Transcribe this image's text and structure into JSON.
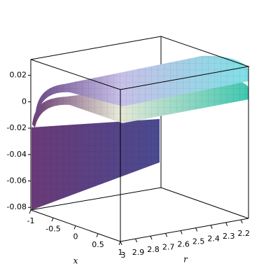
{
  "chart_data": {
    "type": "surface",
    "xlabel": "x",
    "ylabel": "r",
    "xlim": [
      -1,
      1
    ],
    "xticks": [
      -1,
      -0.5,
      0,
      0.5,
      1
    ],
    "ylim": [
      3,
      2.15
    ],
    "yticks": [
      3,
      2.9,
      2.8,
      2.7,
      2.6,
      2.5,
      2.4,
      2.3,
      2.2
    ],
    "zlim": [
      -0.082,
      0.032
    ],
    "zticks": [
      0.02,
      0,
      -0.02,
      -0.04,
      -0.06,
      -0.08
    ]
  }
}
